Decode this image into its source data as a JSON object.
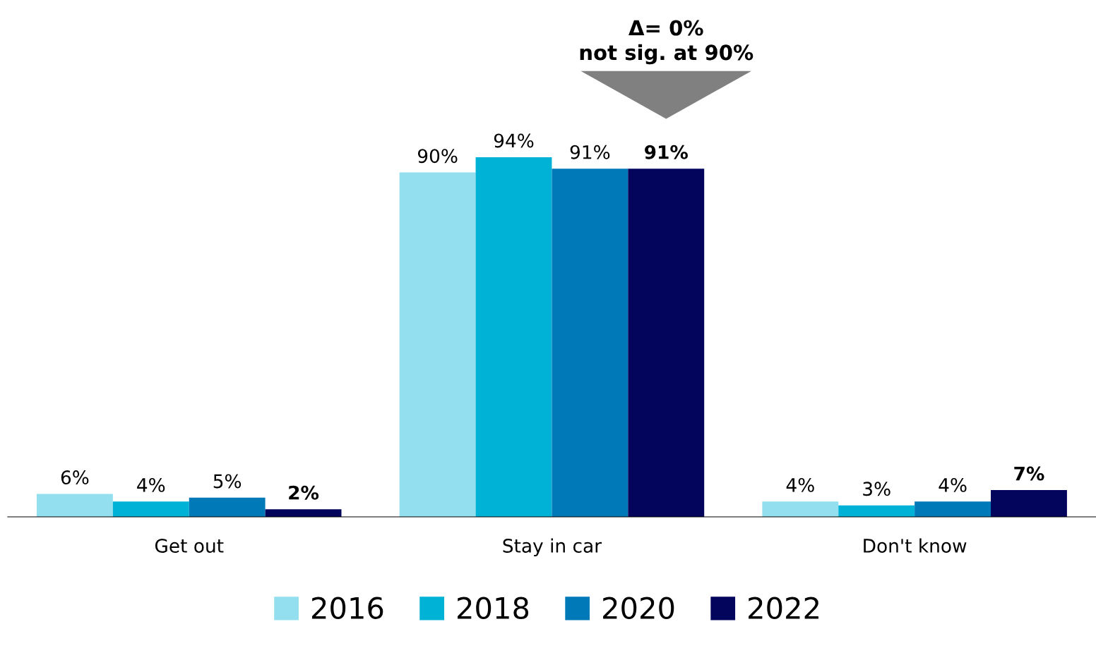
{
  "chart_data": {
    "type": "bar",
    "categories": [
      "Get out",
      "Stay in car",
      "Don't know"
    ],
    "series": [
      {
        "name": "2016",
        "color": "#94dfef",
        "values": [
          6,
          90,
          4
        ],
        "value_labels": [
          "6%",
          "90%",
          "4%"
        ]
      },
      {
        "name": "2018",
        "color": "#00b2d6",
        "values": [
          4,
          94,
          3
        ],
        "value_labels": [
          "4%",
          "94%",
          "3%"
        ]
      },
      {
        "name": "2020",
        "color": "#0079b8",
        "values": [
          5,
          91,
          4
        ],
        "value_labels": [
          "5%",
          "91%",
          "4%"
        ]
      },
      {
        "name": "2022",
        "color": "#03055d",
        "values": [
          2,
          91,
          7
        ],
        "value_labels": [
          "2%",
          "91%",
          "7%"
        ]
      }
    ],
    "legend": "bottom",
    "grid": false,
    "annotations": [
      "Δ= 0%\nnot sig. at 90%"
    ]
  }
}
